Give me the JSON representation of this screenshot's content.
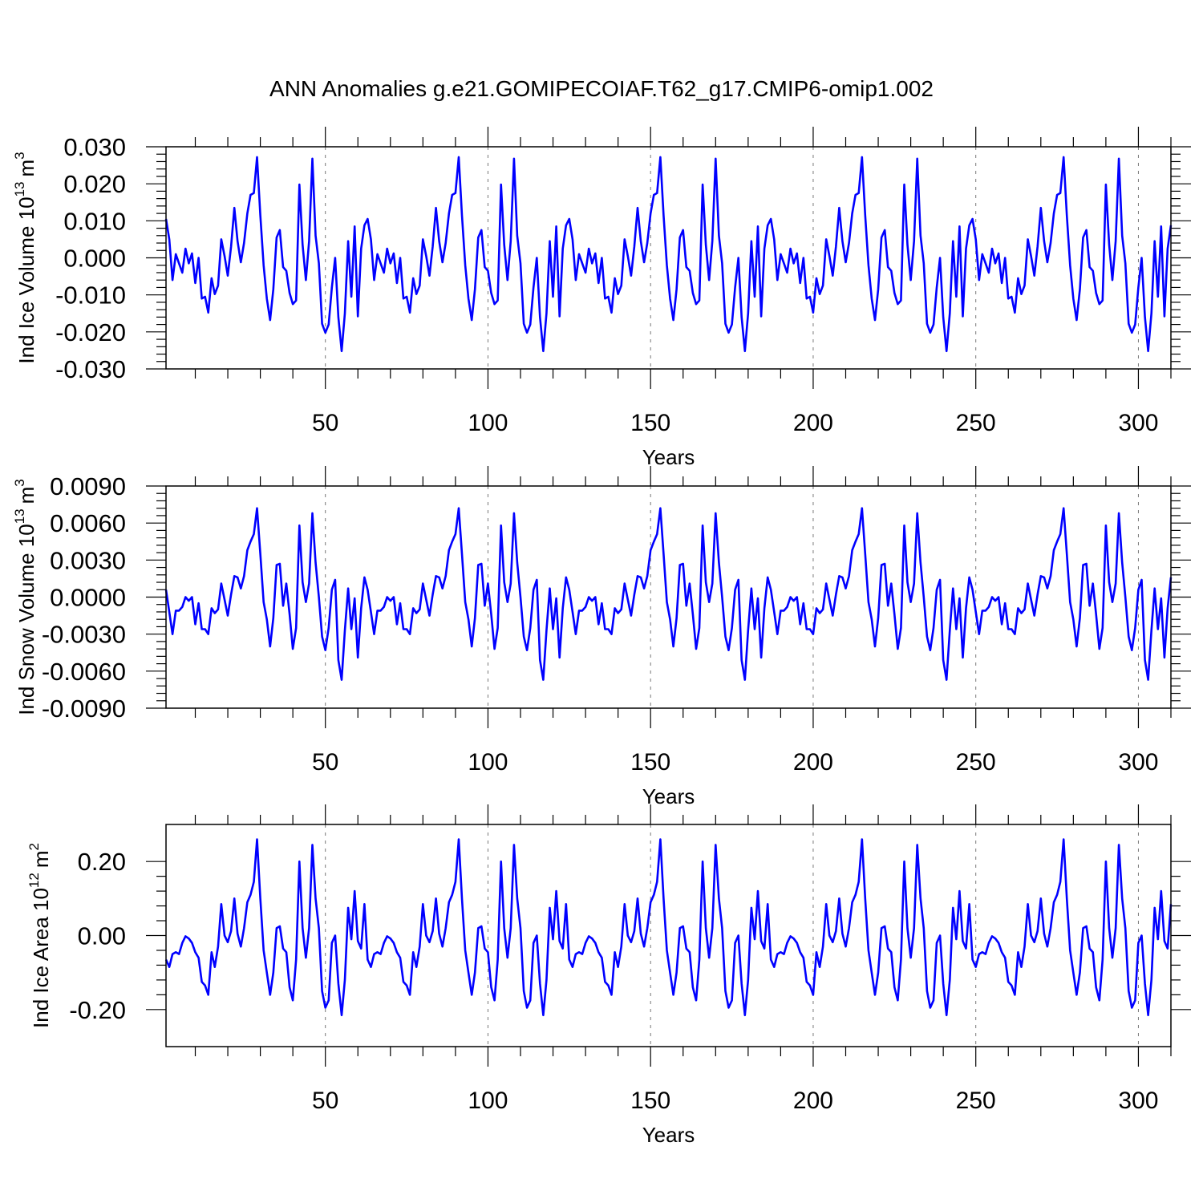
{
  "figure_title": "ANN Anomalies g.e21.GOMIPECOIAF.T62_g17.CMIP6-omip1.002",
  "colors": {
    "series": "#0000ff",
    "axes": "#000000",
    "grid": "#777777"
  },
  "chart_data": [
    {
      "type": "line",
      "name": "ice-volume",
      "ylabel": "Ind Ice Volume 10",
      "ylabel_exp": "13",
      "ylabel_unit": "m",
      "ylabel_unit_exp": "3",
      "xlabel": "Years",
      "xlim": [
        1,
        310
      ],
      "ylim": [
        -0.03,
        0.03
      ],
      "xticks": [
        50,
        100,
        150,
        200,
        250,
        300
      ],
      "xtick_labels": [
        "50",
        "100",
        "150",
        "200",
        "250",
        "300"
      ],
      "yticks": [
        -0.03,
        -0.02,
        -0.01,
        0.0,
        0.01,
        0.02,
        0.03
      ],
      "ytick_labels": [
        "-0.030",
        "-0.020",
        "-0.010",
        "0.000",
        "0.010",
        "0.020",
        "0.030"
      ],
      "grid_x": true,
      "cycle": 62,
      "base": [
        0.0105,
        0.005,
        -0.006,
        0.001,
        -0.0015,
        -0.004,
        0.0025,
        -0.0015,
        0.0012,
        -0.0068,
        0.0,
        -0.011,
        -0.0105,
        -0.0148,
        -0.0055,
        -0.0098,
        -0.0075,
        0.005,
        0.0005,
        -0.0048,
        0.003,
        0.0135,
        0.0045,
        -0.0012,
        0.004,
        0.012,
        0.017,
        0.0175,
        0.0272,
        0.0115,
        -0.002,
        -0.011,
        -0.0168,
        -0.0085,
        0.0055,
        0.0075,
        -0.0025,
        -0.0035,
        -0.0095,
        -0.0125,
        -0.0115,
        0.0198,
        0.0035,
        -0.006,
        0.0045,
        0.0268,
        0.006,
        -0.0015,
        -0.0178,
        -0.0202,
        -0.018,
        -0.008,
        0.0,
        -0.016,
        -0.0252,
        -0.015,
        0.0045,
        -0.0105,
        0.0085,
        -0.0158,
        0.0025,
        0.0088
      ]
    },
    {
      "type": "line",
      "name": "snow-volume",
      "ylabel": "Ind Snow Volume 10",
      "ylabel_exp": "13",
      "ylabel_unit": "m",
      "ylabel_unit_exp": "3",
      "xlabel": "Years",
      "xlim": [
        1,
        310
      ],
      "ylim": [
        -0.009,
        0.009
      ],
      "xticks": [
        50,
        100,
        150,
        200,
        250,
        300
      ],
      "xtick_labels": [
        "50",
        "100",
        "150",
        "200",
        "250",
        "300"
      ],
      "yticks": [
        -0.009,
        -0.006,
        -0.003,
        0.0,
        0.003,
        0.006,
        0.009
      ],
      "ytick_labels": [
        "-0.0090",
        "-0.0060",
        "-0.0030",
        "0.0000",
        "0.0030",
        "0.0060",
        "0.0090"
      ],
      "grid_x": true,
      "cycle": 62,
      "base": [
        0.0006,
        -0.0012,
        -0.003,
        -0.0011,
        -0.0011,
        -0.0008,
        0.0,
        -0.0003,
        0.0,
        -0.0022,
        -0.0005,
        -0.0026,
        -0.0026,
        -0.003,
        -0.0009,
        -0.0013,
        -0.001,
        0.0011,
        -0.0002,
        -0.0015,
        0.0002,
        0.0017,
        0.0016,
        0.0007,
        0.0017,
        0.0038,
        0.0045,
        0.0051,
        0.0072,
        0.0035,
        -0.0004,
        -0.0018,
        -0.004,
        -0.0017,
        0.0026,
        0.0027,
        -0.0007,
        0.0011,
        -0.0014,
        -0.0042,
        -0.0025,
        0.0058,
        0.0012,
        -0.0004,
        0.0011,
        0.0068,
        0.0028,
        0.0,
        -0.0032,
        -0.0043,
        -0.0025,
        0.0006,
        0.0014,
        -0.0051,
        -0.0067,
        -0.0027,
        0.0007,
        -0.0026,
        -0.0001,
        -0.0049,
        -0.0009,
        0.0016
      ]
    },
    {
      "type": "line",
      "name": "ice-area",
      "ylabel": "Ind Ice Area 10",
      "ylabel_exp": "12",
      "ylabel_unit": "m",
      "ylabel_unit_exp": "2",
      "xlabel": "Years",
      "xlim": [
        1,
        310
      ],
      "ylim": [
        -0.3,
        0.3
      ],
      "xticks": [
        50,
        100,
        150,
        200,
        250,
        300
      ],
      "xtick_labels": [
        "50",
        "100",
        "150",
        "200",
        "250",
        "300"
      ],
      "yticks": [
        -0.2,
        0.0,
        0.2
      ],
      "ytick_labels": [
        "-0.20",
        "0.00",
        "0.20"
      ],
      "grid_x": true,
      "cycle": 62,
      "base": [
        -0.065,
        -0.085,
        -0.05,
        -0.045,
        -0.05,
        -0.02,
        -0.002,
        -0.008,
        -0.02,
        -0.045,
        -0.06,
        -0.125,
        -0.135,
        -0.16,
        -0.045,
        -0.085,
        -0.03,
        0.085,
        0.0,
        -0.018,
        0.012,
        0.1,
        0.005,
        -0.03,
        0.02,
        0.09,
        0.11,
        0.145,
        0.26,
        0.1,
        -0.04,
        -0.1,
        -0.16,
        -0.1,
        0.02,
        0.025,
        -0.035,
        -0.045,
        -0.14,
        -0.175,
        -0.065,
        0.2,
        0.02,
        -0.06,
        0.02,
        0.245,
        0.1,
        0.02,
        -0.15,
        -0.195,
        -0.175,
        -0.02,
        0.0,
        -0.13,
        -0.215,
        -0.12,
        0.075,
        -0.01,
        0.12,
        -0.015,
        -0.035,
        0.085
      ]
    }
  ]
}
